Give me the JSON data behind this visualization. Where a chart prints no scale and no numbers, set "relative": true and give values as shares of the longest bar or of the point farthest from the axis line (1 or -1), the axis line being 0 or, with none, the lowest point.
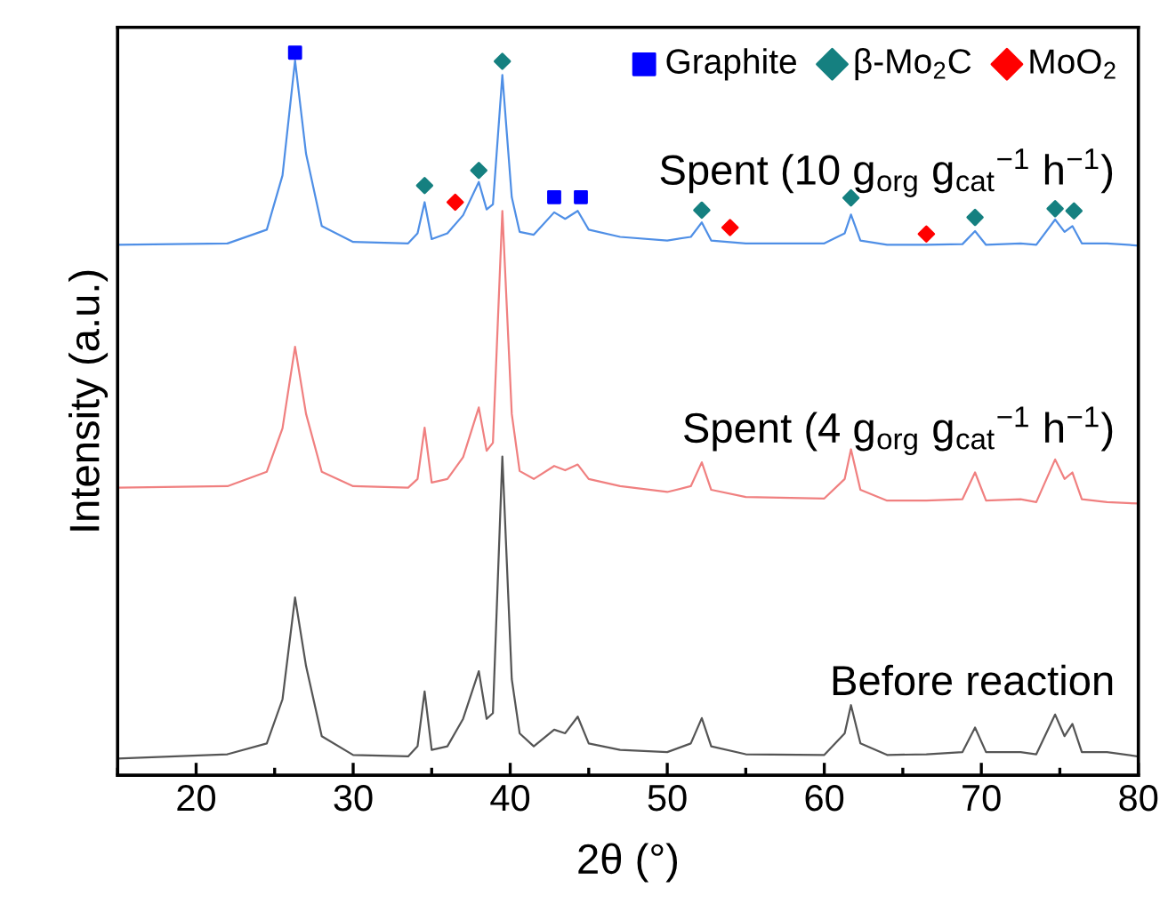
{
  "chart_data": {
    "type": "line",
    "relative": true,
    "xlabel": "2θ (°)",
    "ylabel": "Intensity (a.u.)",
    "xlim": [
      15,
      80
    ],
    "xticks": [
      {
        "value": 15,
        "label": null
      },
      20,
      {
        "value": 25,
        "label": null
      },
      30,
      {
        "value": 35,
        "label": null
      },
      40,
      {
        "value": 45,
        "label": null
      },
      50,
      {
        "value": 55,
        "label": null
      },
      60,
      {
        "value": 65,
        "label": null
      },
      70,
      {
        "value": 75,
        "label": null
      },
      80
    ],
    "legend": "top right",
    "grid": false,
    "x": [
      15,
      22,
      24.5,
      25.5,
      26.3,
      27,
      28,
      30,
      33.5,
      34.1,
      34.55,
      35,
      36,
      37,
      38.0,
      38.5,
      38.9,
      39.5,
      40.1,
      40.6,
      41.5,
      42.8,
      43.5,
      44.3,
      45,
      47,
      50,
      51.5,
      52.2,
      52.8,
      55,
      60,
      61.3,
      61.7,
      62.3,
      64,
      66.5,
      68.8,
      69.6,
      70.3,
      72.5,
      73.5,
      74.7,
      75.3,
      75.8,
      76.4,
      78,
      80
    ],
    "series": [
      {
        "name": "Before reaction",
        "color": "#555555",
        "values": [
          0.023,
          0.029,
          0.044,
          0.105,
          0.246,
          0.151,
          0.054,
          0.028,
          0.026,
          0.04,
          0.116,
          0.035,
          0.04,
          0.078,
          0.144,
          0.078,
          0.086,
          0.441,
          0.133,
          0.058,
          0.04,
          0.063,
          0.058,
          0.081,
          0.044,
          0.035,
          0.032,
          0.044,
          0.079,
          0.04,
          0.029,
          0.028,
          0.058,
          0.097,
          0.044,
          0.028,
          0.029,
          0.032,
          0.066,
          0.032,
          0.032,
          0.029,
          0.084,
          0.054,
          0.071,
          0.032,
          0.032,
          0.026
        ]
      },
      {
        "name": "Spent (4 g$_{org}$ g$_{cat}$$^{−1}$ h$^{−1}$)",
        "color": "#f08080",
        "values": [
          0.398,
          0.4,
          0.42,
          0.48,
          0.593,
          0.5,
          0.42,
          0.4,
          0.398,
          0.41,
          0.481,
          0.405,
          0.41,
          0.44,
          0.509,
          0.449,
          0.46,
          0.781,
          0.5,
          0.421,
          0.41,
          0.428,
          0.422,
          0.43,
          0.41,
          0.4,
          0.392,
          0.4,
          0.433,
          0.395,
          0.385,
          0.383,
          0.41,
          0.451,
          0.395,
          0.38,
          0.38,
          0.382,
          0.419,
          0.38,
          0.382,
          0.378,
          0.437,
          0.41,
          0.419,
          0.382,
          0.378,
          0.376
        ]
      },
      {
        "name": "Spent (10 g$_{org}$ g$_{cat}$$^{−1}$ h$^{−1}$)",
        "color": "#4f8fe6",
        "values": [
          0.734,
          0.736,
          0.755,
          0.83,
          0.989,
          0.86,
          0.76,
          0.738,
          0.736,
          0.75,
          0.793,
          0.742,
          0.75,
          0.775,
          0.821,
          0.783,
          0.79,
          0.969,
          0.8,
          0.752,
          0.748,
          0.779,
          0.77,
          0.781,
          0.755,
          0.745,
          0.74,
          0.745,
          0.765,
          0.74,
          0.736,
          0.736,
          0.75,
          0.776,
          0.74,
          0.734,
          0.734,
          0.735,
          0.753,
          0.734,
          0.736,
          0.734,
          0.769,
          0.752,
          0.76,
          0.736,
          0.736,
          0.733
        ]
      },
      {
        "name": "Graphite",
        "type": "scatter",
        "marker": "square",
        "color": "#0000ff",
        "x": [
          26.3,
          42.8,
          44.5
        ],
        "values": [
          1.0,
          0.8,
          0.8
        ]
      },
      {
        "name": "β-Mo$_{2}$C",
        "type": "scatter",
        "marker": "diamond",
        "color": "#158080",
        "x": [
          34.55,
          38.0,
          39.5,
          52.2,
          61.7,
          69.6,
          74.7,
          75.9
        ],
        "values": [
          0.816,
          0.837,
          0.988,
          0.782,
          0.799,
          0.772,
          0.784,
          0.781
        ]
      },
      {
        "name": "MoO$_{2}$",
        "type": "scatter",
        "marker": "diamond",
        "color": "#ff0000",
        "x": [
          36.5,
          54.0,
          66.5
        ],
        "values": [
          0.793,
          0.758,
          0.749
        ]
      }
    ]
  }
}
